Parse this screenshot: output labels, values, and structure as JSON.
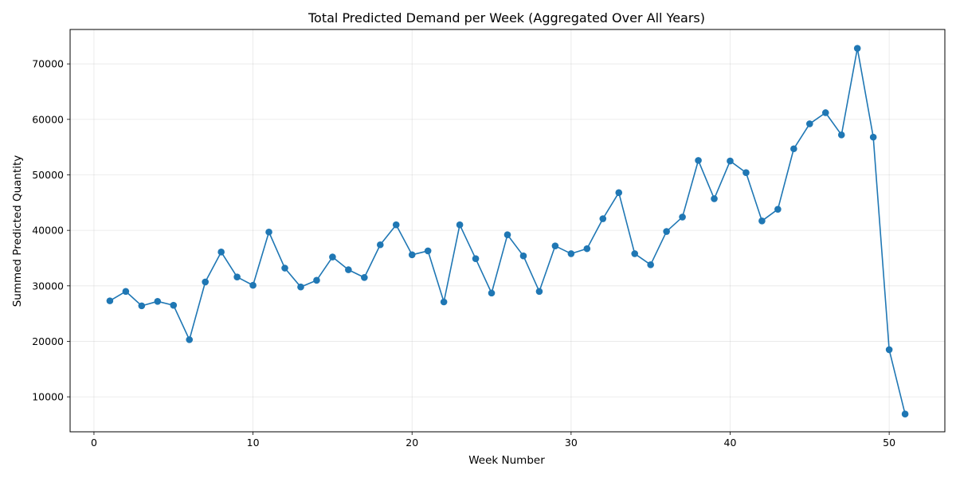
{
  "chart_data": {
    "type": "line",
    "title": "Total Predicted Demand per Week (Aggregated Over All Years)",
    "xlabel": "Week Number",
    "ylabel": "Summed Predicted Quantity",
    "xlim": [
      -1.5,
      53.5
    ],
    "ylim": [
      3700,
      76200
    ],
    "xticks": [
      0,
      10,
      20,
      30,
      40,
      50
    ],
    "xtick_labels": [
      "0",
      "10",
      "20",
      "30",
      "40",
      "50"
    ],
    "yticks": [
      10000,
      20000,
      30000,
      40000,
      50000,
      60000,
      70000
    ],
    "ytick_labels": [
      "10000",
      "20000",
      "30000",
      "40000",
      "50000",
      "60000",
      "70000"
    ],
    "grid": true,
    "legend": "none",
    "series": [
      {
        "color": "#1f77b4",
        "marker": "circle",
        "x": [
          1,
          2,
          3,
          4,
          5,
          6,
          7,
          8,
          9,
          10,
          11,
          12,
          13,
          14,
          15,
          16,
          17,
          18,
          19,
          20,
          21,
          22,
          23,
          24,
          25,
          26,
          27,
          28,
          29,
          30,
          31,
          32,
          33,
          34,
          35,
          36,
          37,
          38,
          39,
          40,
          41,
          42,
          43,
          44,
          45,
          46,
          47,
          48,
          49,
          50,
          51
        ],
        "values": [
          27300,
          29000,
          26400,
          27200,
          26500,
          20300,
          30700,
          36100,
          31600,
          30100,
          39700,
          33200,
          29800,
          31000,
          35200,
          32900,
          31500,
          37400,
          41000,
          35600,
          36300,
          27100,
          41000,
          34900,
          28700,
          39200,
          35400,
          29000,
          37200,
          35800,
          36700,
          42100,
          46800,
          35800,
          33800,
          39800,
          42400,
          52600,
          45700,
          52500,
          50400,
          41700,
          43800,
          54700,
          59200,
          61200,
          57200,
          72800,
          56800,
          18500,
          6900
        ]
      }
    ]
  }
}
